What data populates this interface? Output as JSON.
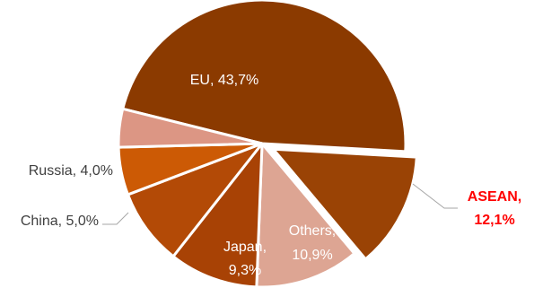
{
  "chart_data": {
    "type": "pie",
    "slices": [
      {
        "label": "EU",
        "value": 43.7,
        "text": "EU, 43,7%",
        "color": "#8B3A00",
        "label_color": "#ffffff"
      },
      {
        "label": "ASEAN",
        "value": 12.1,
        "text_lines": [
          "ASEAN,",
          "12,1%"
        ],
        "color": "#9A4305",
        "label_color": "#FF0000",
        "exploded": true
      },
      {
        "label": "Others",
        "value": 10.9,
        "text_lines": [
          "Others,",
          "10,9%"
        ],
        "color": "#DDA593",
        "label_color": "#ffffff"
      },
      {
        "label": "Japan",
        "value": 9.3,
        "text_lines": [
          "Japan,",
          "9,3%"
        ],
        "color": "#A84205",
        "label_color": "#ffffff"
      },
      {
        "label": "",
        "value": 8.0,
        "color": "#B34A06",
        "label_color": "#ffffff"
      },
      {
        "label": "China",
        "value": 5.0,
        "text": "China, 5,0%",
        "color": "#CC5A05",
        "label_color": "#404040"
      },
      {
        "label": "Russia",
        "value": 4.0,
        "text": "Russia, 4,0%",
        "color": "#DC9684",
        "label_color": "#404040"
      }
    ]
  }
}
